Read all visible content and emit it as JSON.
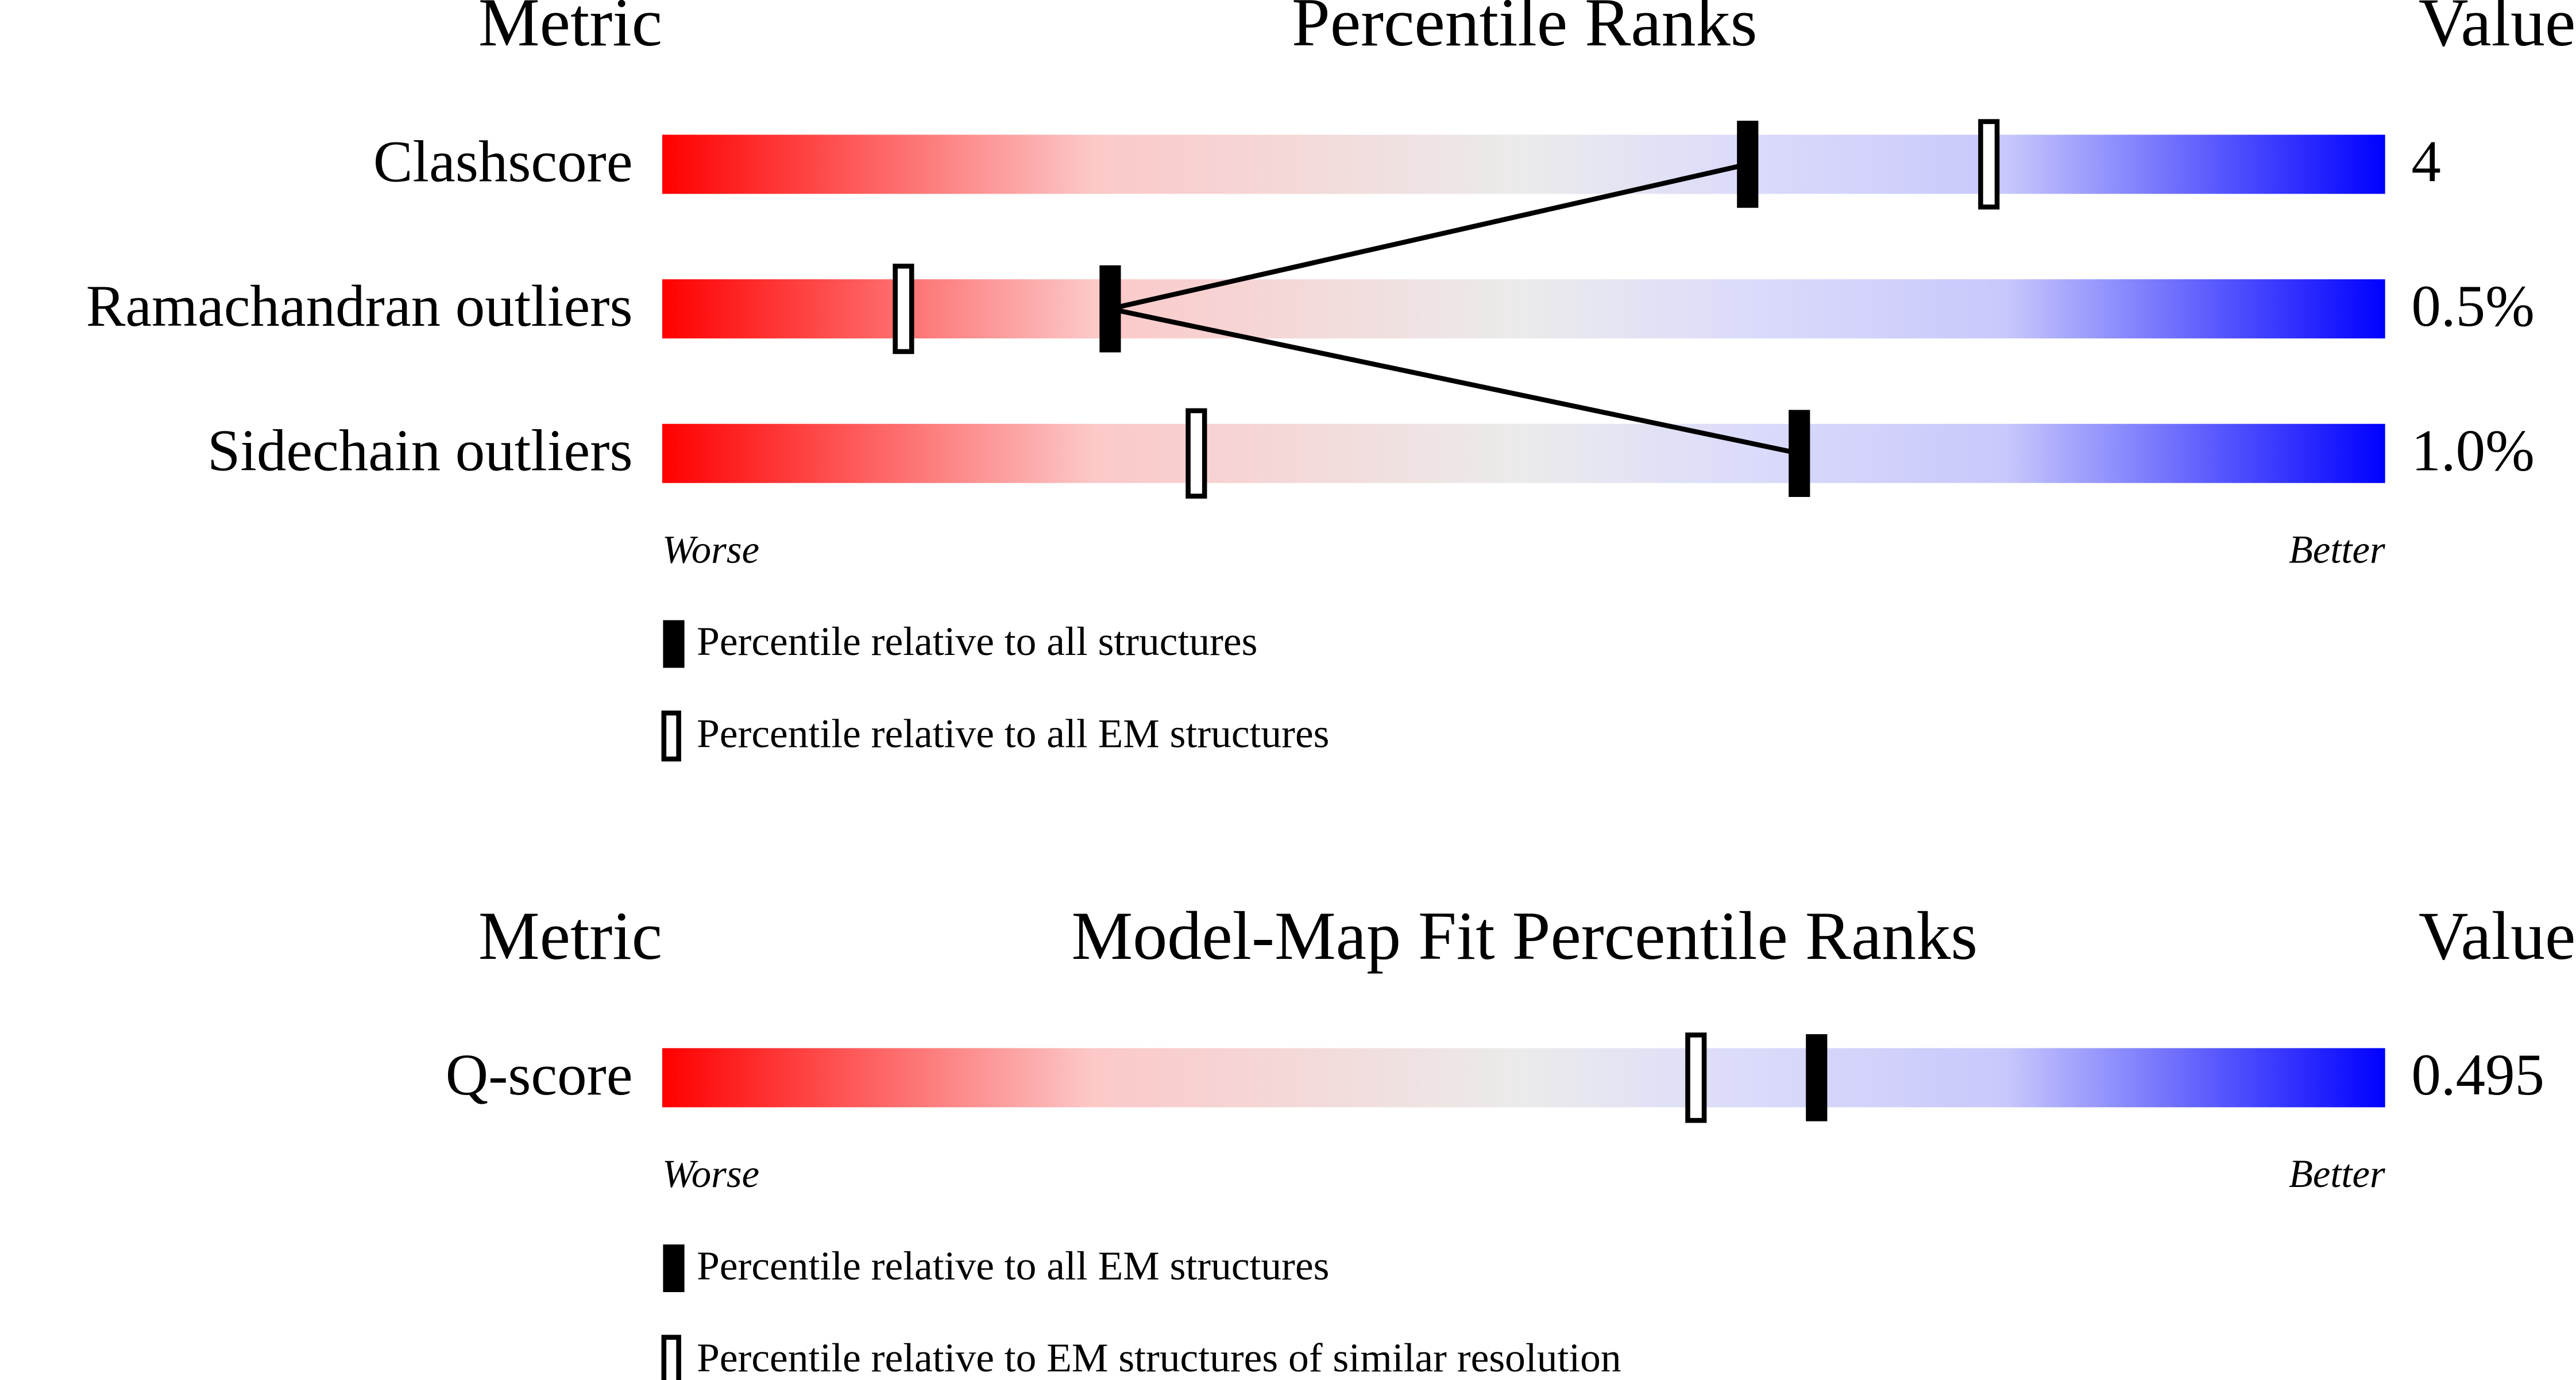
{
  "chart_data": [
    {
      "type": "percentile",
      "metric_header": "Metric",
      "title": "Percentile Ranks",
      "value_header": "Value",
      "categories": [
        "Clashscore",
        "Ramachandran outliers",
        "Sidechain outliers"
      ],
      "metric_values": [
        "4",
        "0.5%",
        "1.0%"
      ],
      "xlim": [
        0,
        100
      ],
      "x_start_label": "Worse",
      "x_end_label": "Better",
      "connect_filled": true,
      "series": [
        {
          "name": "Percentile relative to all structures",
          "style": "filled",
          "color": "#000000",
          "values": [
            63,
            26,
            66
          ]
        },
        {
          "name": "Percentile relative to all EM structures",
          "style": "hollow",
          "color": "#000000",
          "values": [
            77,
            14,
            31
          ]
        }
      ]
    },
    {
      "type": "percentile",
      "metric_header": "Metric",
      "title": "Model-Map Fit Percentile Ranks",
      "value_header": "Value",
      "categories": [
        "Q-score"
      ],
      "metric_values": [
        "0.495"
      ],
      "xlim": [
        0,
        100
      ],
      "x_start_label": "Worse",
      "x_end_label": "Better",
      "connect_filled": true,
      "series": [
        {
          "name": "Percentile relative to all EM structures",
          "style": "filled",
          "color": "#000000",
          "values": [
            67
          ]
        },
        {
          "name": "Percentile relative to EM structures of similar resolution",
          "style": "hollow",
          "color": "#000000",
          "values": [
            60
          ]
        }
      ]
    }
  ]
}
